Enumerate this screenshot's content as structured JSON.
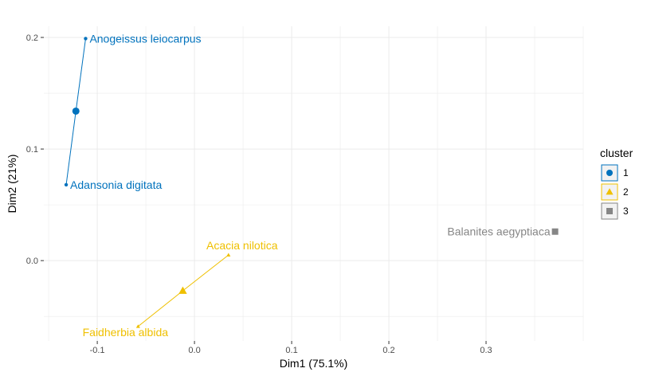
{
  "chart_data": {
    "type": "scatter",
    "title": "",
    "xlabel": "Dim1 (75.1%)",
    "ylabel": "Dim2 (21%)",
    "xlim": [
      -0.155,
      0.4
    ],
    "ylim": [
      -0.072,
      0.21
    ],
    "x_ticks": [
      -0.1,
      0.0,
      0.1,
      0.2,
      0.3
    ],
    "x_tick_labels": [
      "-0.1",
      "0.0",
      "0.1",
      "0.2",
      "0.3"
    ],
    "y_ticks": [
      0.0,
      0.1,
      0.2
    ],
    "y_tick_labels": [
      "0.0",
      "0.1",
      "0.2"
    ],
    "grid": true,
    "legend": {
      "title": "cluster",
      "placement": "right",
      "entries": [
        {
          "label": "1",
          "color": "#0072BD",
          "shape": "circle"
        },
        {
          "label": "2",
          "color": "#EFC000",
          "shape": "triangle"
        },
        {
          "label": "3",
          "color": "#868686",
          "shape": "square"
        }
      ]
    },
    "clusters": [
      {
        "cluster": "1",
        "color": "#0072BD",
        "shape": "circle",
        "centroid": {
          "x": -0.122,
          "y": 0.134
        },
        "points": [
          {
            "label": "Anogeissus leiocarpus",
            "x": -0.112,
            "y": 0.199
          },
          {
            "label": "Adansonia digitata",
            "x": -0.132,
            "y": 0.068
          }
        ]
      },
      {
        "cluster": "2",
        "color": "#EFC000",
        "shape": "triangle",
        "centroid": {
          "x": -0.012,
          "y": -0.027
        },
        "points": [
          {
            "label": "Acacia nilotica",
            "x": 0.035,
            "y": 0.005
          },
          {
            "label": "Faidherbia albida",
            "x": -0.058,
            "y": -0.059
          }
        ]
      },
      {
        "cluster": "3",
        "color": "#868686",
        "shape": "square",
        "centroid": null,
        "points": [
          {
            "label": "Balanites aegyptiaca",
            "x": 0.371,
            "y": 0.026
          }
        ]
      }
    ]
  }
}
